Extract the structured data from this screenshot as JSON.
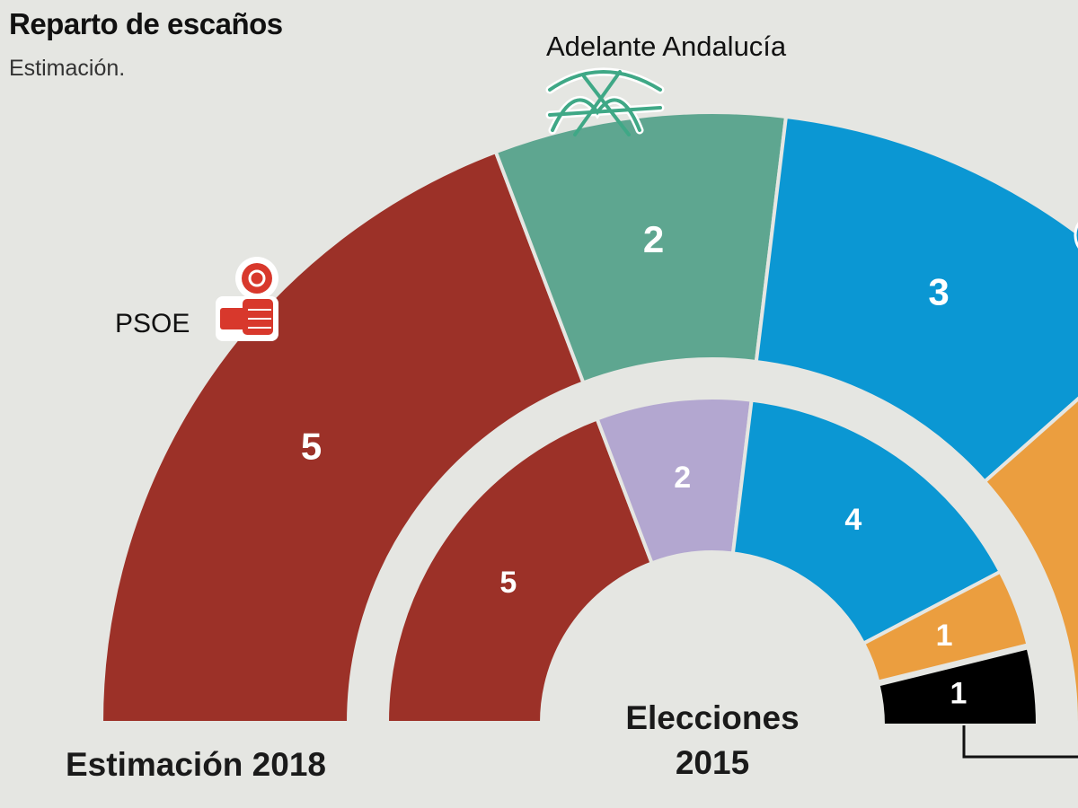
{
  "title": "Reparto de escaños",
  "subtitle": "Estimación.",
  "chart_data": {
    "type": "parliament",
    "title": "Reparto de escaños",
    "subtitle": "Estimación.",
    "rings": [
      {
        "name": "Estimación 2018",
        "segments": [
          {
            "party": "PSOE",
            "value": 5,
            "color": "#9c3128"
          },
          {
            "party": "Adelante Andalucía",
            "value": 2,
            "color": "#5ea690"
          },
          {
            "party": "",
            "value": 3,
            "color": "#0b97d3"
          },
          {
            "party": "",
            "value": null,
            "color": "#eb9e3f"
          }
        ]
      },
      {
        "name": "Elecciones 2015",
        "segments": [
          {
            "party": "",
            "value": 5,
            "color": "#9c3128"
          },
          {
            "party": "",
            "value": 2,
            "color": "#b3a7d0"
          },
          {
            "party": "",
            "value": 4,
            "color": "#0b97d3"
          },
          {
            "party": "",
            "value": 1,
            "color": "#eb9e3f"
          },
          {
            "party": "",
            "value": 1,
            "color": "#000000"
          }
        ]
      }
    ],
    "party_labels": [
      "PSOE",
      "Adelante Andalucía"
    ],
    "ring_labels": [
      "Estimación 2018",
      "Elecciones 2015"
    ]
  }
}
